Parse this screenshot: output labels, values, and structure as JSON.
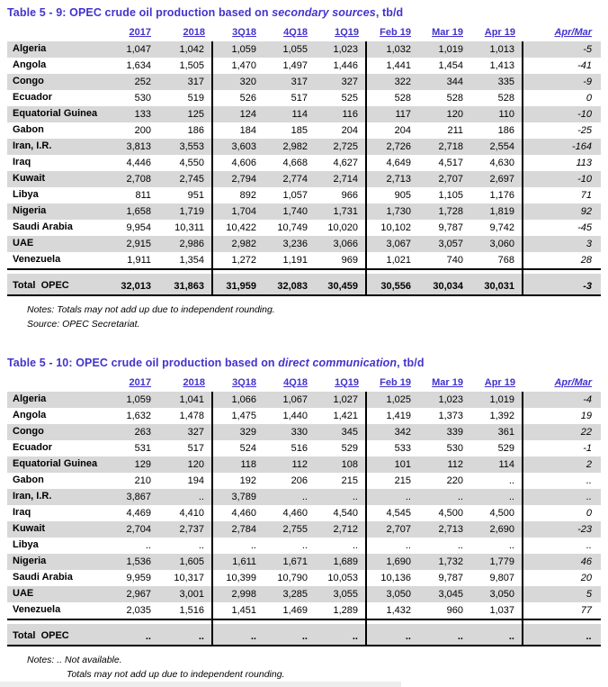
{
  "accent_color": "#4233CC",
  "row_alt_color": "#D8D8D8",
  "tables": [
    {
      "title_prefix": "Table 5 - 9: OPEC crude oil production based on ",
      "title_italic": "secondary sources",
      "title_suffix": ", tb/d",
      "columns": [
        "2017",
        "2018",
        "3Q18",
        "4Q18",
        "1Q19",
        "Feb 19",
        "Mar 19",
        "Apr 19",
        "Apr/Mar"
      ],
      "rows": [
        {
          "name": "Algeria",
          "values": [
            "1,047",
            "1,042",
            "1,059",
            "1,055",
            "1,023",
            "1,032",
            "1,019",
            "1,013",
            "-5"
          ]
        },
        {
          "name": "Angola",
          "values": [
            "1,634",
            "1,505",
            "1,470",
            "1,497",
            "1,446",
            "1,441",
            "1,454",
            "1,413",
            "-41"
          ]
        },
        {
          "name": "Congo",
          "values": [
            "252",
            "317",
            "320",
            "317",
            "327",
            "322",
            "344",
            "335",
            "-9"
          ]
        },
        {
          "name": "Ecuador",
          "values": [
            "530",
            "519",
            "526",
            "517",
            "525",
            "528",
            "528",
            "528",
            "0"
          ]
        },
        {
          "name": "Equatorial Guinea",
          "values": [
            "133",
            "125",
            "124",
            "114",
            "116",
            "117",
            "120",
            "110",
            "-10"
          ]
        },
        {
          "name": "Gabon",
          "values": [
            "200",
            "186",
            "184",
            "185",
            "204",
            "204",
            "211",
            "186",
            "-25"
          ]
        },
        {
          "name": "Iran, I.R.",
          "values": [
            "3,813",
            "3,553",
            "3,603",
            "2,982",
            "2,725",
            "2,726",
            "2,718",
            "2,554",
            "-164"
          ]
        },
        {
          "name": "Iraq",
          "values": [
            "4,446",
            "4,550",
            "4,606",
            "4,668",
            "4,627",
            "4,649",
            "4,517",
            "4,630",
            "113"
          ]
        },
        {
          "name": "Kuwait",
          "values": [
            "2,708",
            "2,745",
            "2,794",
            "2,774",
            "2,714",
            "2,713",
            "2,707",
            "2,697",
            "-10"
          ]
        },
        {
          "name": "Libya",
          "values": [
            "811",
            "951",
            "892",
            "1,057",
            "966",
            "905",
            "1,105",
            "1,176",
            "71"
          ]
        },
        {
          "name": "Nigeria",
          "values": [
            "1,658",
            "1,719",
            "1,704",
            "1,740",
            "1,731",
            "1,730",
            "1,728",
            "1,819",
            "92"
          ]
        },
        {
          "name": "Saudi Arabia",
          "values": [
            "9,954",
            "10,311",
            "10,422",
            "10,749",
            "10,020",
            "10,102",
            "9,787",
            "9,742",
            "-45"
          ]
        },
        {
          "name": "UAE",
          "values": [
            "2,915",
            "2,986",
            "2,982",
            "3,236",
            "3,066",
            "3,067",
            "3,057",
            "3,060",
            "3"
          ]
        },
        {
          "name": "Venezuela",
          "values": [
            "1,911",
            "1,354",
            "1,272",
            "1,191",
            "969",
            "1,021",
            "740",
            "768",
            "28"
          ]
        }
      ],
      "total": {
        "name": "Total  OPEC",
        "values": [
          "32,013",
          "31,863",
          "31,959",
          "32,083",
          "30,459",
          "30,556",
          "30,034",
          "30,031",
          "-3"
        ]
      },
      "notes": [
        {
          "text": "Notes: Totals may not add up due to independent rounding.",
          "indent": false
        },
        {
          "text": "Source: OPEC Secretariat.",
          "indent": false
        }
      ]
    },
    {
      "title_prefix": "Table 5 - 10: OPEC crude oil production based on ",
      "title_italic": "direct communication",
      "title_suffix": ", tb/d",
      "columns": [
        "2017",
        "2018",
        "3Q18",
        "4Q18",
        "1Q19",
        "Feb 19",
        "Mar 19",
        "Apr 19",
        "Apr/Mar"
      ],
      "rows": [
        {
          "name": "Algeria",
          "values": [
            "1,059",
            "1,041",
            "1,066",
            "1,067",
            "1,027",
            "1,025",
            "1,023",
            "1,019",
            "-4"
          ]
        },
        {
          "name": "Angola",
          "values": [
            "1,632",
            "1,478",
            "1,475",
            "1,440",
            "1,421",
            "1,419",
            "1,373",
            "1,392",
            "19"
          ]
        },
        {
          "name": "Congo",
          "values": [
            "263",
            "327",
            "329",
            "330",
            "345",
            "342",
            "339",
            "361",
            "22"
          ]
        },
        {
          "name": "Ecuador",
          "values": [
            "531",
            "517",
            "524",
            "516",
            "529",
            "533",
            "530",
            "529",
            "-1"
          ]
        },
        {
          "name": "Equatorial Guinea",
          "values": [
            "129",
            "120",
            "118",
            "112",
            "108",
            "101",
            "112",
            "114",
            "2"
          ]
        },
        {
          "name": "Gabon",
          "values": [
            "210",
            "194",
            "192",
            "206",
            "215",
            "215",
            "220",
            "..",
            ".."
          ]
        },
        {
          "name": "Iran, I.R.",
          "values": [
            "3,867",
            "..",
            "3,789",
            "..",
            "..",
            "..",
            "..",
            "..",
            ".."
          ]
        },
        {
          "name": "Iraq",
          "values": [
            "4,469",
            "4,410",
            "4,460",
            "4,460",
            "4,540",
            "4,545",
            "4,500",
            "4,500",
            "0"
          ]
        },
        {
          "name": "Kuwait",
          "values": [
            "2,704",
            "2,737",
            "2,784",
            "2,755",
            "2,712",
            "2,707",
            "2,713",
            "2,690",
            "-23"
          ]
        },
        {
          "name": "Libya",
          "values": [
            "..",
            "..",
            "..",
            "..",
            "..",
            "..",
            "..",
            "..",
            ".."
          ]
        },
        {
          "name": "Nigeria",
          "values": [
            "1,536",
            "1,605",
            "1,611",
            "1,671",
            "1,689",
            "1,690",
            "1,732",
            "1,779",
            "46"
          ]
        },
        {
          "name": "Saudi Arabia",
          "values": [
            "9,959",
            "10,317",
            "10,399",
            "10,790",
            "10,053",
            "10,136",
            "9,787",
            "9,807",
            "20"
          ]
        },
        {
          "name": "UAE",
          "values": [
            "2,967",
            "3,001",
            "2,998",
            "3,285",
            "3,055",
            "3,050",
            "3,045",
            "3,050",
            "5"
          ]
        },
        {
          "name": "Venezuela",
          "values": [
            "2,035",
            "1,516",
            "1,451",
            "1,469",
            "1,289",
            "1,432",
            "960",
            "1,037",
            "77"
          ]
        }
      ],
      "total": {
        "name": "Total  OPEC",
        "values": [
          "..",
          "..",
          "..",
          "..",
          "..",
          "..",
          "..",
          "..",
          ".."
        ]
      },
      "notes": [
        {
          "text": "Notes: .. Not available.",
          "indent": false
        },
        {
          "text": "Totals may not add up due to independent rounding.",
          "indent": true
        },
        {
          "text": "Source: OPEC Secretariat.",
          "indent": false
        }
      ]
    }
  ]
}
